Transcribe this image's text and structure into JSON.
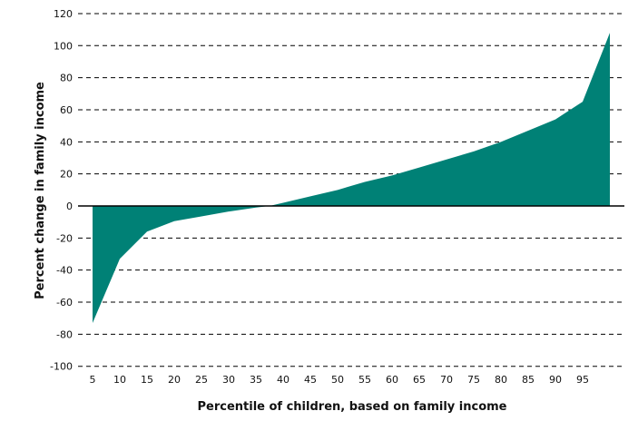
{
  "chart_data": {
    "type": "area",
    "title": "",
    "xlabel": "Percentile of children, based on family income",
    "ylabel": "Percent change in family income",
    "x": [
      5,
      10,
      15,
      20,
      25,
      30,
      35,
      37.5,
      40,
      45,
      50,
      55,
      60,
      65,
      70,
      75,
      80,
      85,
      90,
      95,
      100
    ],
    "values": [
      -73,
      -33,
      -16,
      -9.5,
      -6.5,
      -3.5,
      -1,
      0,
      2,
      6,
      10,
      15,
      19,
      24,
      29,
      34,
      40,
      47,
      54,
      65,
      108
    ],
    "x_tick_labels": [
      "5",
      "10",
      "15",
      "20",
      "25",
      "30",
      "35",
      "40",
      "45",
      "50",
      "55",
      "60",
      "65",
      "70",
      "75",
      "80",
      "85",
      "90",
      "95"
    ],
    "y_tick_labels": [
      "120",
      "100",
      "80",
      "60",
      "40",
      "20",
      "0",
      "-20",
      "-40",
      "-60",
      "-80",
      "-100"
    ],
    "ylim": [
      -100,
      120
    ],
    "xlim": [
      5,
      100
    ],
    "grid": "horizontal dashed",
    "fill_color": "#008176"
  }
}
